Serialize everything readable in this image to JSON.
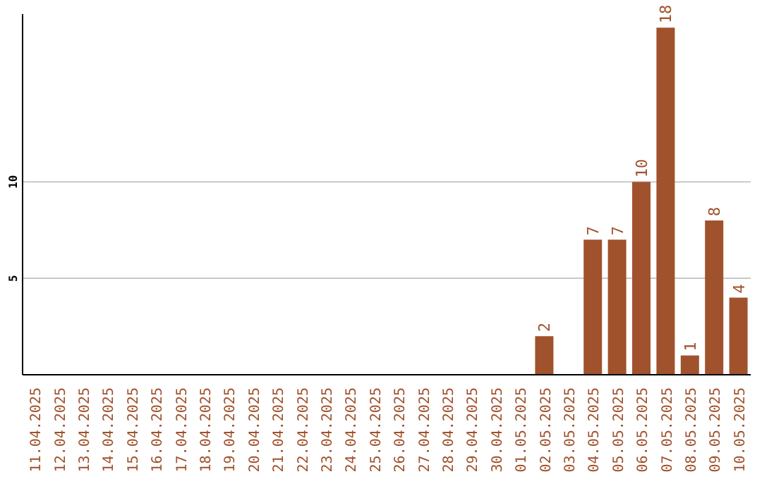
{
  "chart_data": {
    "type": "bar",
    "categories": [
      "11.04.2025",
      "12.04.2025",
      "13.04.2025",
      "14.04.2025",
      "15.04.2025",
      "16.04.2025",
      "17.04.2025",
      "18.04.2025",
      "19.04.2025",
      "20.04.2025",
      "21.04.2025",
      "22.04.2025",
      "23.04.2025",
      "24.04.2025",
      "25.04.2025",
      "26.04.2025",
      "27.04.2025",
      "28.04.2025",
      "29.04.2025",
      "30.04.2025",
      "01.05.2025",
      "02.05.2025",
      "03.05.2025",
      "04.05.2025",
      "05.05.2025",
      "06.05.2025",
      "07.05.2025",
      "08.05.2025",
      "09.05.2025",
      "10.05.2025"
    ],
    "values": [
      0,
      0,
      0,
      0,
      0,
      0,
      0,
      0,
      0,
      0,
      0,
      0,
      0,
      0,
      0,
      0,
      0,
      0,
      0,
      0,
      0,
      2,
      0,
      7,
      7,
      10,
      18,
      1,
      8,
      4
    ],
    "value_labels": [
      null,
      null,
      null,
      null,
      null,
      null,
      null,
      null,
      null,
      null,
      null,
      null,
      null,
      null,
      null,
      null,
      null,
      null,
      null,
      null,
      null,
      "2",
      null,
      "7",
      "7",
      "10",
      "18",
      "1",
      "8",
      "4"
    ],
    "color": "#a0522d",
    "ylim": [
      0,
      18.7
    ],
    "yticks": [
      5,
      10
    ],
    "grid": "y"
  }
}
